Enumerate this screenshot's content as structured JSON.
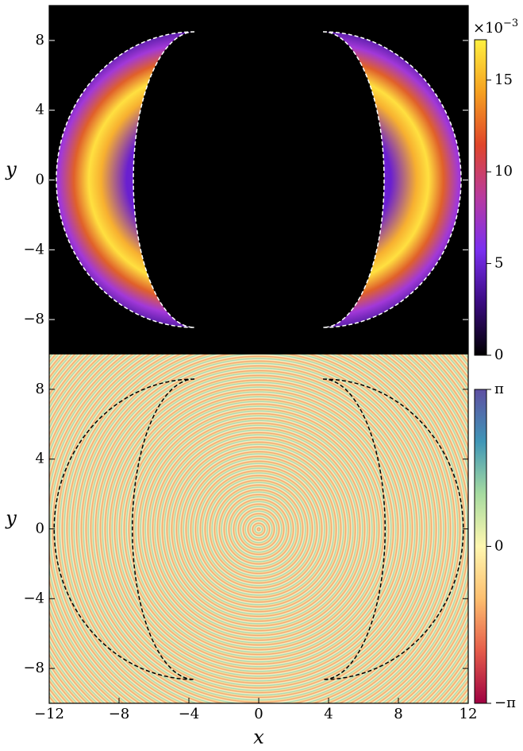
{
  "chart_data": [
    {
      "type": "heatmap",
      "ylabel": "y",
      "xlim": [
        -12,
        12
      ],
      "ylim": [
        -10,
        10
      ],
      "yticks": [
        {
          "value": -8,
          "label": "−8"
        },
        {
          "value": -4,
          "label": "−4"
        },
        0,
        4,
        8
      ],
      "colorbar": {
        "clim": [
          0,
          17.2
        ],
        "ticks": [
          0,
          5,
          10,
          15
        ],
        "offset_base": "×10",
        "offset_exponent": "−3",
        "colormap": [
          "#000000",
          "#3a0a80",
          "#7a2ff0",
          "#b83aa0",
          "#e0452a",
          "#f5a020",
          "#fff040"
        ]
      }
    },
    {
      "type": "heatmap",
      "xlabel": "x",
      "ylabel": "y",
      "xlim": [
        -12,
        12
      ],
      "ylim": [
        -10,
        10
      ],
      "xticks": [
        {
          "value": -12,
          "label": "−12"
        },
        {
          "value": -8,
          "label": "−8"
        },
        {
          "value": -4,
          "label": "−4"
        },
        0,
        4,
        8,
        12
      ],
      "yticks": [
        {
          "value": -8,
          "label": "−8"
        },
        {
          "value": -4,
          "label": "−4"
        },
        0,
        4,
        8
      ],
      "colorbar": {
        "clim": [
          -3.14159,
          3.14159
        ],
        "ticks": [
          {
            "value": -3.14159,
            "label": "−π"
          },
          0,
          {
            "value": 3.14159,
            "label": "π"
          }
        ],
        "colormap": [
          "#9e0142",
          "#e55c4a",
          "#fdbf6f",
          "#fff7b0",
          "#a6dba0",
          "#3f96b7",
          "#5e4fa2"
        ]
      }
    }
  ]
}
